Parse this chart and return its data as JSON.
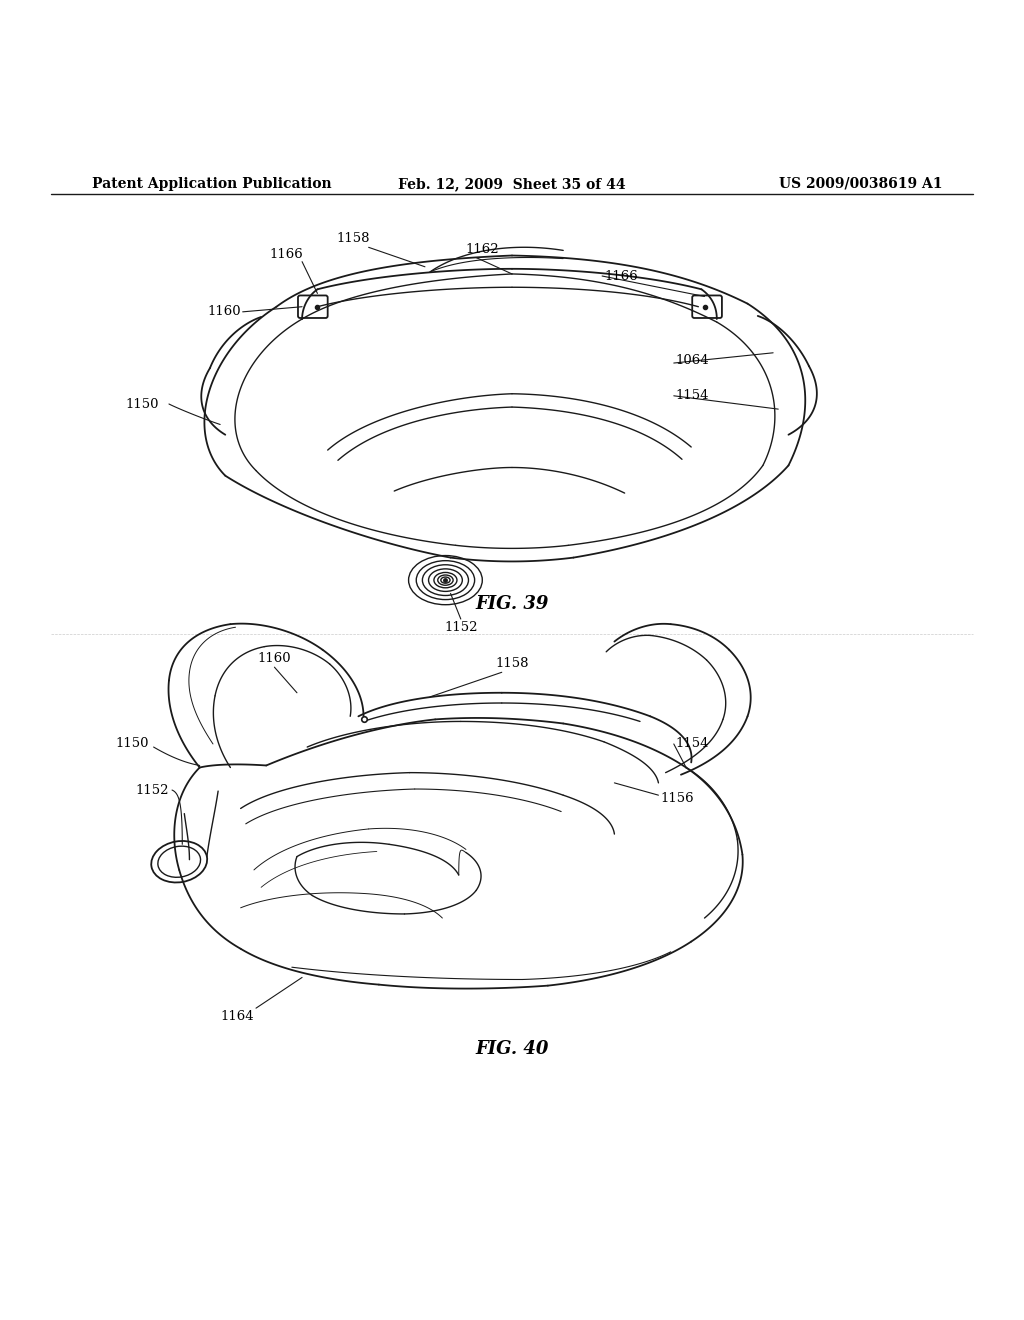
{
  "background_color": "#ffffff",
  "header_left": "Patent Application Publication",
  "header_mid": "Feb. 12, 2009  Sheet 35 of 44",
  "header_right": "US 2009/0038619 A1",
  "fig39_label": "FIG. 39",
  "fig40_label": "FIG. 40",
  "line_color": "#1a1a1a",
  "text_color": "#000000",
  "header_fontsize": 10,
  "label_fontsize": 9.5,
  "fig_label_fontsize": 13
}
